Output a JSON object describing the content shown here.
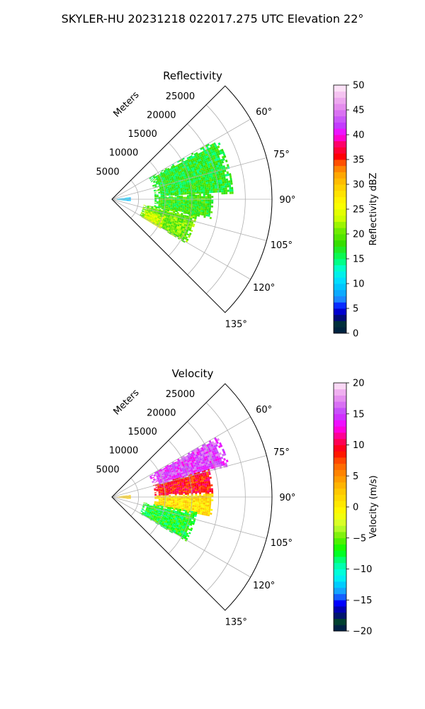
{
  "figure": {
    "suptitle": "SKYLER-HU  20231218  022017.275 UTC Elevation 22°"
  },
  "colors": {
    "grid": "#b0b0b0",
    "axis": "#000000"
  },
  "chart_data": [
    {
      "type": "heatmap",
      "subtype": "polar-sector",
      "title": "Reflectivity",
      "radial_label": "Meters",
      "radial_ticks": [
        5000,
        10000,
        15000,
        20000,
        25000
      ],
      "radial_tick_labels": [
        "5000",
        "10000",
        "15000",
        "20000",
        "25000"
      ],
      "radial_range": [
        0,
        30000
      ],
      "theta_range_deg": [
        45,
        135
      ],
      "theta_ticks": [
        60,
        75,
        90,
        105,
        120,
        135
      ],
      "theta_tick_labels": [
        "60°",
        "75°",
        "90°",
        "105°",
        "120°",
        "135°"
      ],
      "grid": true,
      "colorbar": {
        "label": "Reflectivity dBZ",
        "min": 0,
        "max": 50,
        "ticks": [
          0,
          5,
          10,
          15,
          20,
          25,
          30,
          35,
          40,
          45,
          50
        ],
        "tick_labels": [
          "0",
          "5",
          "10",
          "15",
          "20",
          "25",
          "30",
          "35",
          "40",
          "45",
          "50"
        ],
        "stops": [
          {
            "v": 0,
            "c": "#00124f"
          },
          {
            "v": 1.5,
            "c": "#003a2a"
          },
          {
            "v": 3.5,
            "c": "#00008b"
          },
          {
            "v": 5,
            "c": "#0000ff"
          },
          {
            "v": 7,
            "c": "#1e90ff"
          },
          {
            "v": 9,
            "c": "#00bfff"
          },
          {
            "v": 11,
            "c": "#00e5ff"
          },
          {
            "v": 13,
            "c": "#00ffd0"
          },
          {
            "v": 15,
            "c": "#00ff66"
          },
          {
            "v": 18,
            "c": "#33dd00"
          },
          {
            "v": 21,
            "c": "#77ee00"
          },
          {
            "v": 23,
            "c": "#ccff00"
          },
          {
            "v": 26,
            "c": "#ffff00"
          },
          {
            "v": 29,
            "c": "#ffd700"
          },
          {
            "v": 32,
            "c": "#ffa500"
          },
          {
            "v": 34,
            "c": "#ff6a00"
          },
          {
            "v": 35.5,
            "c": "#ff0000"
          },
          {
            "v": 38,
            "c": "#ff0060"
          },
          {
            "v": 40,
            "c": "#ff00ff"
          },
          {
            "v": 42,
            "c": "#bf3fff"
          },
          {
            "v": 45,
            "c": "#e07fee"
          },
          {
            "v": 48,
            "c": "#f4c0f0"
          },
          {
            "v": 50,
            "c": "#fff0fa"
          }
        ]
      },
      "echo_regions": [
        {
          "r": [
            900,
            3400
          ],
          "theta": [
            84,
            96
          ],
          "v": 9
        },
        {
          "r": [
            8000,
            22500
          ],
          "theta": [
            60,
            87
          ],
          "v": 17
        },
        {
          "r": [
            8000,
            19000
          ],
          "theta": [
            87,
            101
          ],
          "v": 18
        },
        {
          "r": [
            6000,
            16000
          ],
          "theta": [
            100,
            120
          ],
          "v": 20
        },
        {
          "r": [
            6500,
            10500
          ],
          "theta": [
            108,
            121
          ],
          "v": 24
        }
      ]
    },
    {
      "type": "heatmap",
      "subtype": "polar-sector",
      "title": "Velocity",
      "radial_label": "Meters",
      "radial_ticks": [
        5000,
        10000,
        15000,
        20000,
        25000
      ],
      "radial_tick_labels": [
        "5000",
        "10000",
        "15000",
        "20000",
        "25000"
      ],
      "radial_range": [
        0,
        30000
      ],
      "theta_range_deg": [
        45,
        135
      ],
      "theta_ticks": [
        60,
        75,
        90,
        105,
        120,
        135
      ],
      "theta_tick_labels": [
        "60°",
        "75°",
        "90°",
        "105°",
        "120°",
        "135°"
      ],
      "grid": true,
      "colorbar": {
        "label": "Velocity (m/s)",
        "min": -20,
        "max": 20,
        "ticks": [
          -20,
          -15,
          -10,
          -5,
          0,
          5,
          10,
          15,
          20
        ],
        "tick_labels": [
          "−20",
          "−15",
          "−10",
          "−5",
          "0",
          "5",
          "10",
          "15",
          "20"
        ],
        "stops": [
          {
            "v": -20,
            "c": "#00124f"
          },
          {
            "v": -18.5,
            "c": "#004030"
          },
          {
            "v": -17,
            "c": "#00008b"
          },
          {
            "v": -15.5,
            "c": "#0000ff"
          },
          {
            "v": -14,
            "c": "#1e90ff"
          },
          {
            "v": -12.5,
            "c": "#00ccff"
          },
          {
            "v": -11,
            "c": "#00ffee"
          },
          {
            "v": -9,
            "c": "#00ff99"
          },
          {
            "v": -7,
            "c": "#00ff00"
          },
          {
            "v": -5,
            "c": "#66ee00"
          },
          {
            "v": -3,
            "c": "#ccff33"
          },
          {
            "v": -1,
            "c": "#ffff00"
          },
          {
            "v": 1,
            "c": "#ffe000"
          },
          {
            "v": 3,
            "c": "#ffc000"
          },
          {
            "v": 5,
            "c": "#ff9000"
          },
          {
            "v": 7,
            "c": "#ff6000"
          },
          {
            "v": 9,
            "c": "#ff0000"
          },
          {
            "v": 11,
            "c": "#ff0070"
          },
          {
            "v": 13,
            "c": "#ff00ff"
          },
          {
            "v": 15,
            "c": "#c040ff"
          },
          {
            "v": 17,
            "c": "#e080f0"
          },
          {
            "v": 19,
            "c": "#f4c0f0"
          },
          {
            "v": 20,
            "c": "#fff0fa"
          }
        ]
      },
      "echo_regions": [
        {
          "r": [
            900,
            3400
          ],
          "theta": [
            84,
            96
          ],
          "v": 2
        },
        {
          "r": [
            8000,
            22500
          ],
          "theta": [
            60,
            75
          ],
          "v": 15
        },
        {
          "r": [
            8000,
            19000
          ],
          "theta": [
            74,
            88
          ],
          "v": 9
        },
        {
          "r": [
            8000,
            19000
          ],
          "theta": [
            88,
            101
          ],
          "v": 1
        },
        {
          "r": [
            6000,
            16000
          ],
          "theta": [
            100,
            120
          ],
          "v": -7
        }
      ]
    }
  ]
}
